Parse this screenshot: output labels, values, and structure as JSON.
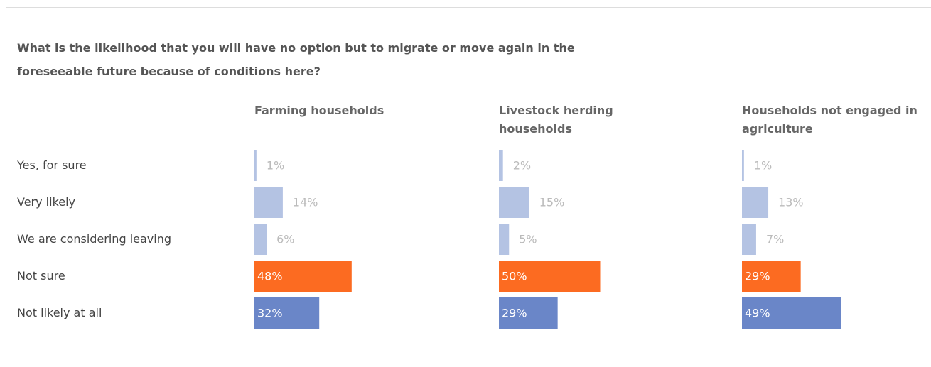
{
  "chart_data": {
    "type": "bar",
    "title": "What is the likelihood that you will have no option but to migrate or move again in the foreseeable future because of conditions here?",
    "categories": [
      "Yes, for sure",
      "Very likely",
      "We are considering leaving",
      "Not sure",
      "Not likely at all"
    ],
    "colors": [
      "#b4c3e3",
      "#b4c3e3",
      "#b4c3e3",
      "#fc6b21",
      "#6a86c8"
    ],
    "label_colors": [
      "#bbbbbb",
      "#bbbbbb",
      "#bbbbbb",
      "#ffffff",
      "#ffffff"
    ],
    "label_positions": [
      "outside",
      "outside",
      "outside",
      "inside",
      "inside"
    ],
    "series": [
      {
        "name": "Farming households",
        "values": [
          1,
          14,
          6,
          48,
          32
        ],
        "value_labels": [
          "1%",
          "14%",
          "6%",
          "48%",
          "32%"
        ]
      },
      {
        "name": "Livestock herding households",
        "values": [
          2,
          15,
          5,
          50,
          29
        ],
        "value_labels": [
          "2%",
          "15%",
          "5%",
          "50%",
          "29%"
        ]
      },
      {
        "name": "Households not engaged in agriculture",
        "values": [
          1,
          13,
          7,
          29,
          49
        ],
        "value_labels": [
          "1%",
          "13%",
          "7%",
          "29%",
          "49%"
        ]
      }
    ]
  }
}
